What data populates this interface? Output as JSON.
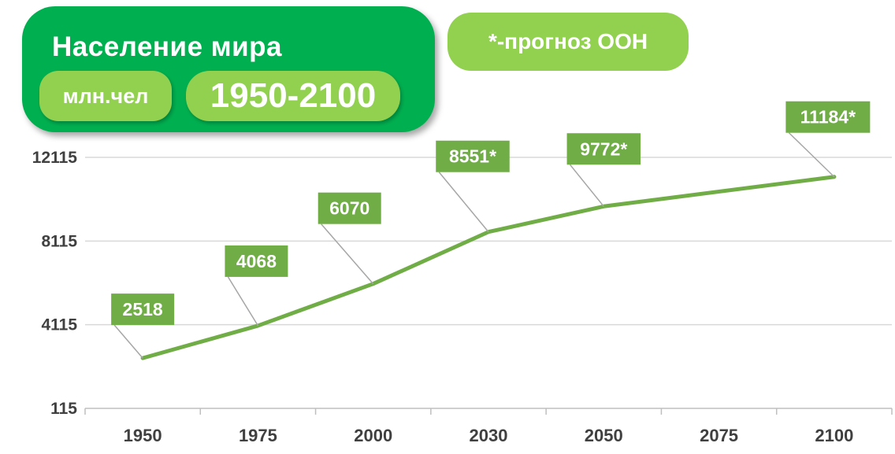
{
  "header": {
    "title": "Население мира",
    "units": "млн.чел",
    "range": "1950-2100",
    "note": "*-прогноз ООН"
  },
  "colors": {
    "title_box": "#00b050",
    "pill": "#92d050",
    "line": "#70ad47",
    "label_box": "#70ad47"
  },
  "chart_data": {
    "type": "line",
    "categories": [
      "1950",
      "1975",
      "2000",
      "2030",
      "2050",
      "2075",
      "2100"
    ],
    "series": [
      {
        "values": [
          2518,
          4068,
          6070,
          8551,
          9772,
          null,
          11184
        ],
        "labels": [
          "2518",
          "4068",
          "6070",
          "8551*",
          "9772*",
          null,
          "11184*"
        ]
      }
    ],
    "yticks": [
      "115",
      "4115",
      "8115",
      "12115"
    ],
    "ylim": [
      115,
      12115
    ],
    "grid": true,
    "legend": "none"
  }
}
